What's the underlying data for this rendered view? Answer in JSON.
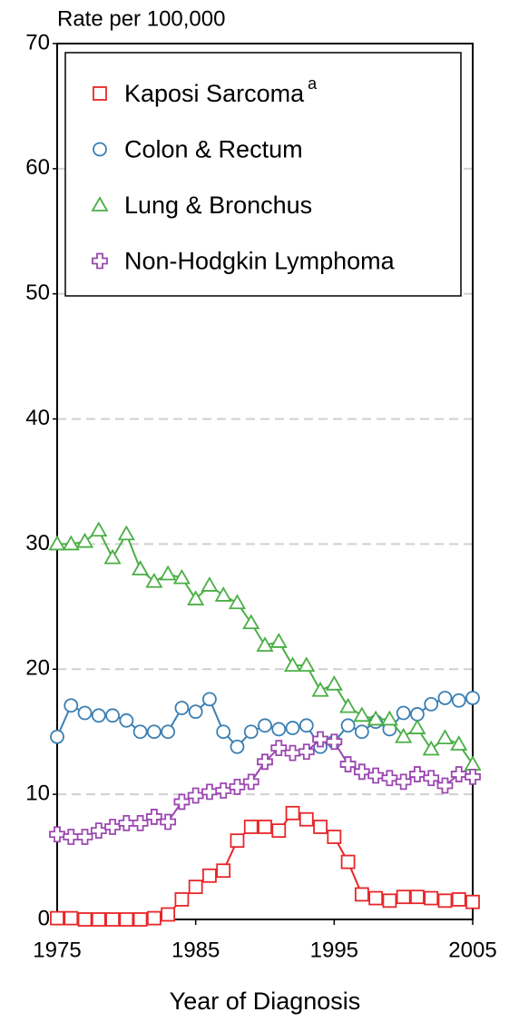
{
  "chart_data": {
    "type": "line",
    "title": "Rate per 100,000",
    "x_label": "Year of Diagnosis",
    "x": [
      1975,
      1976,
      1977,
      1978,
      1979,
      1980,
      1981,
      1982,
      1983,
      1984,
      1985,
      1986,
      1987,
      1988,
      1989,
      1990,
      1991,
      1992,
      1993,
      1994,
      1995,
      1996,
      1997,
      1998,
      1999,
      2000,
      2001,
      2002,
      2003,
      2004,
      2005
    ],
    "series": [
      {
        "name": "Kaposi Sarcoma",
        "note": "a",
        "color": "#e8262a",
        "marker": "square",
        "values": [
          0.1,
          0.1,
          0,
          0,
          0,
          0,
          0,
          0.1,
          0.4,
          1.6,
          2.6,
          3.5,
          3.9,
          6.3,
          7.4,
          7.4,
          7.1,
          8.5,
          8.0,
          7.4,
          6.6,
          4.6,
          2.0,
          1.7,
          1.5,
          1.8,
          1.8,
          1.7,
          1.5,
          1.6,
          1.4
        ]
      },
      {
        "name": "Colon & Rectum",
        "color": "#3b7fb3",
        "marker": "circle",
        "values": [
          14.6,
          17.1,
          16.5,
          16.3,
          16.3,
          15.9,
          15.0,
          15.0,
          15.0,
          16.9,
          16.6,
          17.6,
          15.0,
          13.8,
          15.0,
          15.5,
          15.2,
          15.3,
          15.5,
          13.8,
          14.2,
          15.5,
          15.0,
          15.8,
          15.2,
          16.5,
          16.4,
          17.2,
          17.7,
          17.5,
          17.7
        ]
      },
      {
        "name": "Lung & Bronchus",
        "color": "#4aaf44",
        "marker": "triangle",
        "values": [
          30.0,
          30.0,
          30.2,
          31.1,
          28.9,
          30.8,
          28.0,
          27.0,
          27.6,
          27.3,
          25.6,
          26.7,
          25.9,
          25.3,
          23.7,
          21.9,
          22.2,
          20.3,
          20.3,
          18.3,
          18.8,
          17.0,
          16.3,
          16.0,
          16.0,
          14.6,
          15.3,
          13.6,
          14.5,
          14.0,
          12.4
        ]
      },
      {
        "name": "Non-Hodgkin Lymphoma",
        "color": "#9b47b0",
        "marker": "plus",
        "values": [
          6.8,
          6.6,
          6.6,
          7.1,
          7.4,
          7.7,
          7.7,
          8.2,
          7.8,
          9.4,
          9.9,
          10.2,
          10.3,
          10.6,
          11.0,
          12.6,
          13.7,
          13.3,
          13.4,
          14.4,
          14.2,
          12.4,
          11.8,
          11.5,
          11.3,
          11.0,
          11.6,
          11.3,
          10.7,
          11.6,
          11.4
        ]
      }
    ],
    "xlim": [
      1975,
      2005
    ],
    "xticks": [
      1975,
      1985,
      1995,
      2005
    ],
    "ylim": [
      0,
      70
    ],
    "yticks": [
      0,
      10,
      20,
      30,
      40,
      50,
      60,
      70
    ],
    "grid": true,
    "legend": "top"
  }
}
